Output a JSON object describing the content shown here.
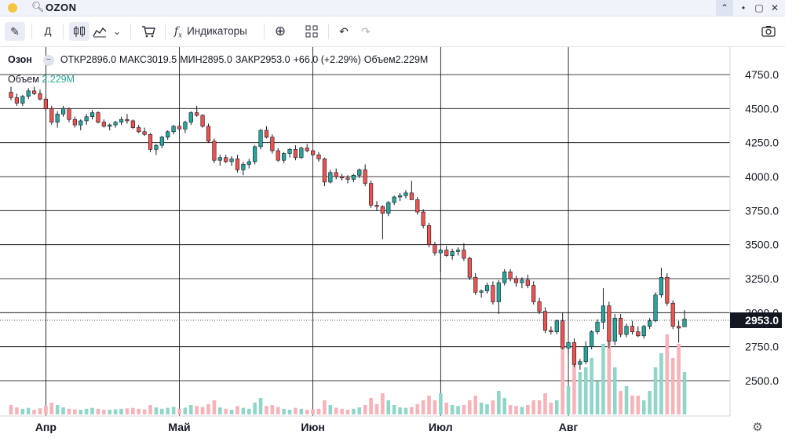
{
  "window": {
    "symbol": "OZON",
    "icons": [
      "search-icon",
      "chevron-up-icon",
      "minimize-icon",
      "restore-icon",
      "close-icon"
    ]
  },
  "toolbar": {
    "interval": "Д",
    "indicators_label": "Индикаторы",
    "icons": [
      "pencil-icon",
      "candles-icon",
      "area-chart-icon",
      "chevron-down-icon",
      "cart-icon",
      "function-icon",
      "plus-circle-icon",
      "layout-grid-icon",
      "undo-icon",
      "redo-icon",
      "camera-icon"
    ]
  },
  "legend": {
    "name": "Озон",
    "open_label": "ОТКР",
    "open": "2896.0",
    "high_label": "МАКС",
    "high": "3019.5",
    "low_label": "МИН",
    "low": "2895.0",
    "close_label": "ЗАКР",
    "close": "2953.0",
    "change": "+66.0 (+2.29%)",
    "volume_label": "Объем",
    "volume": "2.229M"
  },
  "volume_legend": {
    "label": "Объем",
    "value": "2.229M"
  },
  "last_price": "2953.0",
  "colors": {
    "up": "#26a69a",
    "down": "#ef5350",
    "vol_up": "#8fd6c8",
    "vol_down": "#f7b3b8",
    "grid": "#000000"
  },
  "chart_data": {
    "type": "candlestick",
    "y_ticks": [
      "4750.0",
      "4500.0",
      "4250.0",
      "4000.0",
      "3750.0",
      "3500.0",
      "3250.0",
      "3000.0",
      "2750.0",
      "2500.0"
    ],
    "ylim": [
      2250,
      4950
    ],
    "x_labels": [
      "Апр",
      "Май",
      "Июн",
      "Июл",
      "Авг"
    ],
    "candles": [
      [
        4620,
        4660,
        4560,
        4580
      ],
      [
        4580,
        4610,
        4520,
        4540
      ],
      [
        4540,
        4600,
        4520,
        4590
      ],
      [
        4590,
        4650,
        4570,
        4630
      ],
      [
        4630,
        4660,
        4600,
        4610
      ],
      [
        4610,
        4640,
        4560,
        4570
      ],
      [
        4570,
        4590,
        4480,
        4500
      ],
      [
        4500,
        4520,
        4380,
        4400
      ],
      [
        4400,
        4480,
        4360,
        4460
      ],
      [
        4460,
        4520,
        4440,
        4500
      ],
      [
        4500,
        4510,
        4400,
        4420
      ],
      [
        4420,
        4440,
        4360,
        4380
      ],
      [
        4380,
        4420,
        4340,
        4410
      ],
      [
        4410,
        4460,
        4380,
        4440
      ],
      [
        4440,
        4490,
        4420,
        4470
      ],
      [
        4470,
        4480,
        4390,
        4400
      ],
      [
        4400,
        4420,
        4360,
        4370
      ],
      [
        4370,
        4390,
        4340,
        4380
      ],
      [
        4380,
        4410,
        4360,
        4400
      ],
      [
        4400,
        4440,
        4380,
        4420
      ],
      [
        4420,
        4460,
        4390,
        4410
      ],
      [
        4410,
        4420,
        4350,
        4360
      ],
      [
        4360,
        4380,
        4320,
        4330
      ],
      [
        4330,
        4360,
        4300,
        4310
      ],
      [
        4310,
        4320,
        4180,
        4200
      ],
      [
        4200,
        4240,
        4160,
        4230
      ],
      [
        4230,
        4300,
        4210,
        4290
      ],
      [
        4290,
        4340,
        4270,
        4330
      ],
      [
        4330,
        4380,
        4310,
        4370
      ],
      [
        4370,
        4400,
        4330,
        4350
      ],
      [
        4350,
        4410,
        4320,
        4400
      ],
      [
        4400,
        4480,
        4380,
        4470
      ],
      [
        4470,
        4520,
        4440,
        4450
      ],
      [
        4450,
        4460,
        4360,
        4370
      ],
      [
        4370,
        4390,
        4250,
        4260
      ],
      [
        4260,
        4280,
        4100,
        4120
      ],
      [
        4120,
        4160,
        4080,
        4140
      ],
      [
        4140,
        4160,
        4100,
        4110
      ],
      [
        4110,
        4150,
        4080,
        4130
      ],
      [
        4130,
        4160,
        4030,
        4050
      ],
      [
        4050,
        4110,
        4010,
        4090
      ],
      [
        4090,
        4130,
        4060,
        4110
      ],
      [
        4110,
        4230,
        4090,
        4220
      ],
      [
        4220,
        4350,
        4200,
        4340
      ],
      [
        4340,
        4370,
        4280,
        4290
      ],
      [
        4290,
        4310,
        4170,
        4190
      ],
      [
        4190,
        4210,
        4110,
        4120
      ],
      [
        4120,
        4180,
        4100,
        4170
      ],
      [
        4170,
        4210,
        4140,
        4200
      ],
      [
        4200,
        4230,
        4120,
        4140
      ],
      [
        4140,
        4220,
        4130,
        4210
      ],
      [
        4210,
        4240,
        4180,
        4190
      ],
      [
        4190,
        4200,
        4150,
        4160
      ],
      [
        4160,
        4180,
        4110,
        4130
      ],
      [
        4130,
        4140,
        3930,
        3960
      ],
      [
        3960,
        4050,
        3950,
        4030
      ],
      [
        4030,
        4060,
        3980,
        4000
      ],
      [
        4000,
        4020,
        3970,
        3990
      ],
      [
        3990,
        4010,
        3950,
        3980
      ],
      [
        3980,
        4020,
        3960,
        4010
      ],
      [
        4010,
        4060,
        3990,
        4050
      ],
      [
        4050,
        4090,
        3930,
        3950
      ],
      [
        3950,
        3970,
        3770,
        3790
      ],
      [
        3790,
        3820,
        3750,
        3780
      ],
      [
        3780,
        3790,
        3540,
        3730
      ],
      [
        3730,
        3820,
        3710,
        3810
      ],
      [
        3810,
        3860,
        3790,
        3850
      ],
      [
        3850,
        3880,
        3820,
        3860
      ],
      [
        3860,
        3900,
        3840,
        3880
      ],
      [
        3880,
        3970,
        3850,
        3830
      ],
      [
        3830,
        3850,
        3720,
        3740
      ],
      [
        3740,
        3760,
        3620,
        3640
      ],
      [
        3640,
        3660,
        3480,
        3500
      ],
      [
        3500,
        3520,
        3420,
        3440
      ],
      [
        3440,
        3470,
        3300,
        3460
      ],
      [
        3460,
        3490,
        3410,
        3420
      ],
      [
        3420,
        3470,
        3390,
        3450
      ],
      [
        3450,
        3480,
        3420,
        3460
      ],
      [
        3460,
        3510,
        3380,
        3400
      ],
      [
        3400,
        3410,
        3240,
        3260
      ],
      [
        3260,
        3290,
        3130,
        3150
      ],
      [
        3150,
        3170,
        3110,
        3160
      ],
      [
        3160,
        3220,
        3140,
        3200
      ],
      [
        3200,
        3230,
        3060,
        3080
      ],
      [
        3080,
        3240,
        2990,
        3220
      ],
      [
        3220,
        3320,
        3200,
        3300
      ],
      [
        3300,
        3320,
        3230,
        3250
      ],
      [
        3250,
        3270,
        3190,
        3220
      ],
      [
        3220,
        3260,
        3180,
        3240
      ],
      [
        3240,
        3280,
        3180,
        3200
      ],
      [
        3200,
        3230,
        3060,
        3080
      ],
      [
        3080,
        3110,
        2990,
        3010
      ],
      [
        3010,
        3040,
        2850,
        2870
      ],
      [
        2870,
        2900,
        2840,
        2860
      ],
      [
        2860,
        2950,
        2840,
        2940
      ],
      [
        2940,
        3000,
        2730,
        2740
      ],
      [
        2740,
        2790,
        2700,
        2780
      ],
      [
        2780,
        2810,
        2600,
        2620
      ],
      [
        2620,
        2660,
        2580,
        2640
      ],
      [
        2640,
        2790,
        2620,
        2750
      ],
      [
        2750,
        2870,
        2730,
        2860
      ],
      [
        2860,
        2950,
        2840,
        2930
      ],
      [
        2930,
        3180,
        2880,
        3050
      ],
      [
        3050,
        3080,
        2740,
        2790
      ],
      [
        2790,
        2990,
        2760,
        2960
      ],
      [
        2960,
        2990,
        2820,
        2840
      ],
      [
        2840,
        2920,
        2820,
        2900
      ],
      [
        2900,
        2940,
        2840,
        2860
      ],
      [
        2860,
        2900,
        2820,
        2830
      ],
      [
        2830,
        2910,
        2810,
        2900
      ],
      [
        2900,
        2960,
        2880,
        2940
      ],
      [
        2940,
        3150,
        2930,
        3130
      ],
      [
        3130,
        3330,
        3110,
        3260
      ],
      [
        3260,
        3290,
        3050,
        3070
      ],
      [
        3070,
        3090,
        2880,
        2900
      ],
      [
        2900,
        2940,
        2780,
        2887
      ],
      [
        2896,
        3019.5,
        2895,
        2953
      ]
    ],
    "volumes": [
      0.2,
      0.15,
      0.12,
      0.14,
      0.1,
      0.13,
      0.18,
      0.25,
      0.2,
      0.15,
      0.12,
      0.11,
      0.1,
      0.12,
      0.14,
      0.12,
      0.1,
      0.1,
      0.11,
      0.12,
      0.13,
      0.14,
      0.12,
      0.11,
      0.2,
      0.15,
      0.12,
      0.14,
      0.16,
      0.12,
      0.14,
      0.2,
      0.18,
      0.16,
      0.22,
      0.3,
      0.15,
      0.12,
      0.1,
      0.18,
      0.14,
      0.12,
      0.25,
      0.35,
      0.18,
      0.2,
      0.16,
      0.12,
      0.1,
      0.14,
      0.12,
      0.1,
      0.11,
      0.12,
      0.3,
      0.2,
      0.14,
      0.12,
      0.1,
      0.12,
      0.15,
      0.2,
      0.35,
      0.22,
      0.45,
      0.3,
      0.2,
      0.15,
      0.14,
      0.16,
      0.22,
      0.3,
      0.4,
      0.3,
      0.45,
      0.25,
      0.2,
      0.18,
      0.2,
      0.3,
      0.4,
      0.25,
      0.22,
      0.3,
      0.5,
      0.35,
      0.2,
      0.18,
      0.16,
      0.2,
      0.3,
      0.3,
      0.45,
      0.25,
      0.3,
      1.4,
      0.6,
      1.1,
      0.9,
      1.0,
      1.2,
      0.7,
      1.5,
      1.9,
      1.0,
      0.5,
      0.6,
      0.4,
      0.4,
      0.3,
      0.5,
      1.0,
      1.3,
      1.7,
      1.2,
      1.5,
      0.9
    ]
  }
}
